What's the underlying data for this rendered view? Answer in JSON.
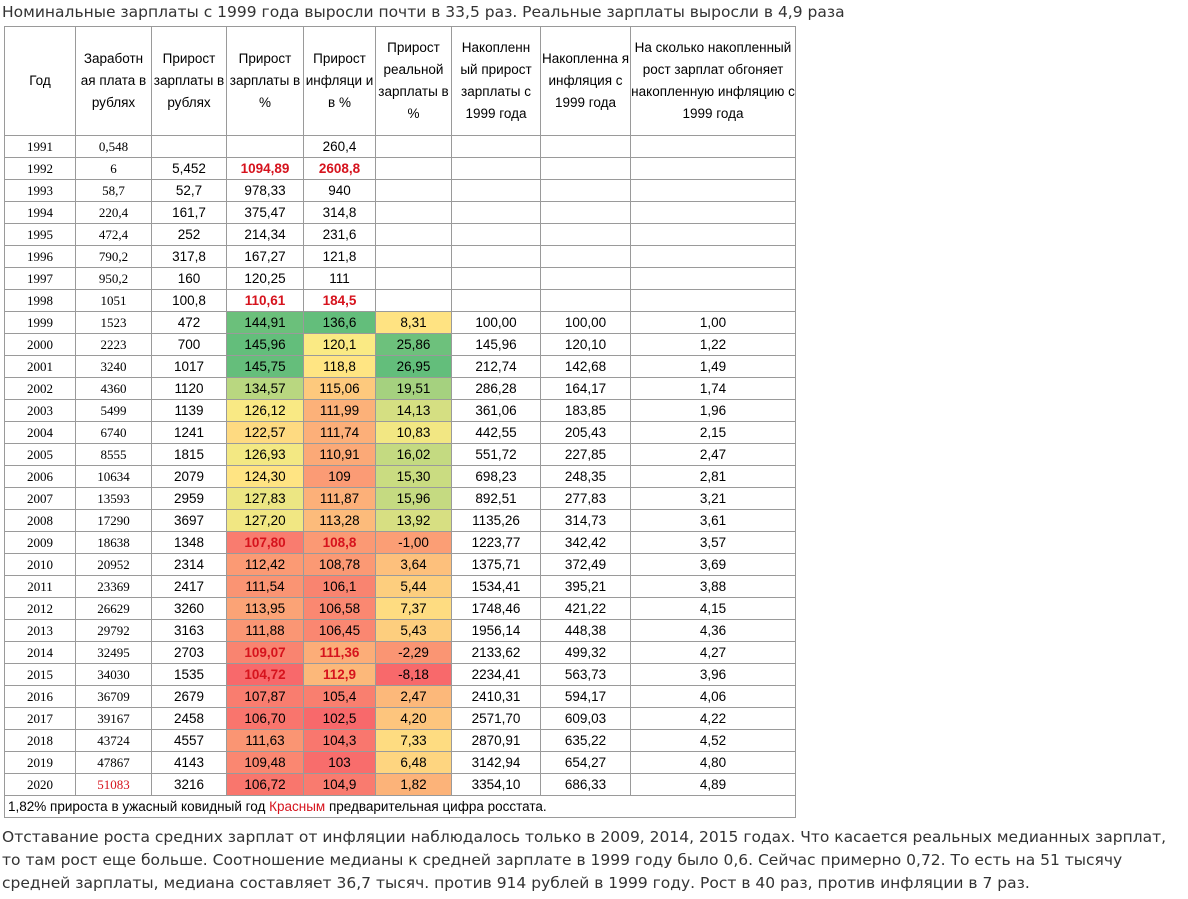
{
  "title": "Номинальные зарплаты с 1999 года выросли почти в 33,5 раз. Реальные зарплаты выросли в 4,9 раза",
  "headers": [
    "Год",
    "Заработн ая плата в рублях",
    "Прирост зарплаты в рублях",
    "Прирост зарплаты в %",
    "Прирост инфляци и в %",
    "Прирост реальной зарплаты в %",
    "Накопленн ый прирост зарплаты с 1999 года",
    "Накопленна я инфляция с 1999 года",
    "На сколько накопленный рост зарплат обгоняет накопленную инфляцию с 1999 года"
  ],
  "rows": [
    {
      "year": "1991",
      "salary": "0,548",
      "inc_rub": "",
      "inc_pct": "",
      "infl": "260,4",
      "real": "",
      "cum_sal": "",
      "cum_infl": "",
      "ratio": ""
    },
    {
      "year": "1992",
      "salary": "6",
      "inc_rub": "5,452",
      "inc_pct": "1094,89",
      "infl": "2608,8",
      "real": "",
      "cum_sal": "",
      "cum_infl": "",
      "ratio": ""
    },
    {
      "year": "1993",
      "salary": "58,7",
      "inc_rub": "52,7",
      "inc_pct": "978,33",
      "infl": "940",
      "real": "",
      "cum_sal": "",
      "cum_infl": "",
      "ratio": ""
    },
    {
      "year": "1994",
      "salary": "220,4",
      "inc_rub": "161,7",
      "inc_pct": "375,47",
      "infl": "314,8",
      "real": "",
      "cum_sal": "",
      "cum_infl": "",
      "ratio": ""
    },
    {
      "year": "1995",
      "salary": "472,4",
      "inc_rub": "252",
      "inc_pct": "214,34",
      "infl": "231,6",
      "real": "",
      "cum_sal": "",
      "cum_infl": "",
      "ratio": ""
    },
    {
      "year": "1996",
      "salary": "790,2",
      "inc_rub": "317,8",
      "inc_pct": "167,27",
      "infl": "121,8",
      "real": "",
      "cum_sal": "",
      "cum_infl": "",
      "ratio": ""
    },
    {
      "year": "1997",
      "salary": "950,2",
      "inc_rub": "160",
      "inc_pct": "120,25",
      "infl": "111",
      "real": "",
      "cum_sal": "",
      "cum_infl": "",
      "ratio": ""
    },
    {
      "year": "1998",
      "salary": "1051",
      "inc_rub": "100,8",
      "inc_pct": "110,61",
      "infl": "184,5",
      "real": "",
      "cum_sal": "",
      "cum_infl": "",
      "ratio": ""
    },
    {
      "year": "1999",
      "salary": "1523",
      "inc_rub": "472",
      "inc_pct": "144,91",
      "infl": "136,6",
      "real": "8,31",
      "cum_sal": "100,00",
      "cum_infl": "100,00",
      "ratio": "1,00"
    },
    {
      "year": "2000",
      "salary": "2223",
      "inc_rub": "700",
      "inc_pct": "145,96",
      "infl": "120,1",
      "real": "25,86",
      "cum_sal": "145,96",
      "cum_infl": "120,10",
      "ratio": "1,22"
    },
    {
      "year": "2001",
      "salary": "3240",
      "inc_rub": "1017",
      "inc_pct": "145,75",
      "infl": "118,8",
      "real": "26,95",
      "cum_sal": "212,74",
      "cum_infl": "142,68",
      "ratio": "1,49"
    },
    {
      "year": "2002",
      "salary": "4360",
      "inc_rub": "1120",
      "inc_pct": "134,57",
      "infl": "115,06",
      "real": "19,51",
      "cum_sal": "286,28",
      "cum_infl": "164,17",
      "ratio": "1,74"
    },
    {
      "year": "2003",
      "salary": "5499",
      "inc_rub": "1139",
      "inc_pct": "126,12",
      "infl": "111,99",
      "real": "14,13",
      "cum_sal": "361,06",
      "cum_infl": "183,85",
      "ratio": "1,96"
    },
    {
      "year": "2004",
      "salary": "6740",
      "inc_rub": "1241",
      "inc_pct": "122,57",
      "infl": "111,74",
      "real": "10,83",
      "cum_sal": "442,55",
      "cum_infl": "205,43",
      "ratio": "2,15"
    },
    {
      "year": "2005",
      "salary": "8555",
      "inc_rub": "1815",
      "inc_pct": "126,93",
      "infl": "110,91",
      "real": "16,02",
      "cum_sal": "551,72",
      "cum_infl": "227,85",
      "ratio": "2,47"
    },
    {
      "year": "2006",
      "salary": "10634",
      "inc_rub": "2079",
      "inc_pct": "124,30",
      "infl": "109",
      "real": "15,30",
      "cum_sal": "698,23",
      "cum_infl": "248,35",
      "ratio": "2,81"
    },
    {
      "year": "2007",
      "salary": "13593",
      "inc_rub": "2959",
      "inc_pct": "127,83",
      "infl": "111,87",
      "real": "15,96",
      "cum_sal": "892,51",
      "cum_infl": "277,83",
      "ratio": "3,21"
    },
    {
      "year": "2008",
      "salary": "17290",
      "inc_rub": "3697",
      "inc_pct": "127,20",
      "infl": "113,28",
      "real": "13,92",
      "cum_sal": "1135,26",
      "cum_infl": "314,73",
      "ratio": "3,61"
    },
    {
      "year": "2009",
      "salary": "18638",
      "inc_rub": "1348",
      "inc_pct": "107,80",
      "infl": "108,8",
      "real": "-1,00",
      "cum_sal": "1223,77",
      "cum_infl": "342,42",
      "ratio": "3,57"
    },
    {
      "year": "2010",
      "salary": "20952",
      "inc_rub": "2314",
      "inc_pct": "112,42",
      "infl": "108,78",
      "real": "3,64",
      "cum_sal": "1375,71",
      "cum_infl": "372,49",
      "ratio": "3,69"
    },
    {
      "year": "2011",
      "salary": "23369",
      "inc_rub": "2417",
      "inc_pct": "111,54",
      "infl": "106,1",
      "real": "5,44",
      "cum_sal": "1534,41",
      "cum_infl": "395,21",
      "ratio": "3,88"
    },
    {
      "year": "2012",
      "salary": "26629",
      "inc_rub": "3260",
      "inc_pct": "113,95",
      "infl": "106,58",
      "real": "7,37",
      "cum_sal": "1748,46",
      "cum_infl": "421,22",
      "ratio": "4,15"
    },
    {
      "year": "2013",
      "salary": "29792",
      "inc_rub": "3163",
      "inc_pct": "111,88",
      "infl": "106,45",
      "real": "5,43",
      "cum_sal": "1956,14",
      "cum_infl": "448,38",
      "ratio": "4,36"
    },
    {
      "year": "2014",
      "salary": "32495",
      "inc_rub": "2703",
      "inc_pct": "109,07",
      "infl": "111,36",
      "real": "-2,29",
      "cum_sal": "2133,62",
      "cum_infl": "499,32",
      "ratio": "4,27"
    },
    {
      "year": "2015",
      "salary": "34030",
      "inc_rub": "1535",
      "inc_pct": "104,72",
      "infl": "112,9",
      "real": "-8,18",
      "cum_sal": "2234,41",
      "cum_infl": "563,73",
      "ratio": "3,96"
    },
    {
      "year": "2016",
      "salary": "36709",
      "inc_rub": "2679",
      "inc_pct": "107,87",
      "infl": "105,4",
      "real": "2,47",
      "cum_sal": "2410,31",
      "cum_infl": "594,17",
      "ratio": "4,06"
    },
    {
      "year": "2017",
      "salary": "39167",
      "inc_rub": "2458",
      "inc_pct": "106,70",
      "infl": "102,5",
      "real": "4,20",
      "cum_sal": "2571,70",
      "cum_infl": "609,03",
      "ratio": "4,22"
    },
    {
      "year": "2018",
      "salary": "43724",
      "inc_rub": "4557",
      "inc_pct": "111,63",
      "infl": "104,3",
      "real": "7,33",
      "cum_sal": "2870,91",
      "cum_infl": "635,22",
      "ratio": "4,52"
    },
    {
      "year": "2019",
      "salary": "47867",
      "inc_rub": "4143",
      "inc_pct": "109,48",
      "infl": "103",
      "real": "6,48",
      "cum_sal": "3142,94",
      "cum_infl": "654,27",
      "ratio": "4,80"
    },
    {
      "year": "2020",
      "salary": "51083",
      "inc_rub": "3216",
      "inc_pct": "106,72",
      "infl": "104,9",
      "real": "1,82",
      "cum_sal": "3354,10",
      "cum_infl": "686,33",
      "ratio": "4,89"
    }
  ],
  "red_bold_years": [
    "1992",
    "1998",
    "2009",
    "2014",
    "2015"
  ],
  "red_salary_years": [
    "2020"
  ],
  "footer": {
    "part1": "1,82% прироста в ужасный ковидный год",
    "red_word": "Красным",
    "part2": " предварительная цифра росстата."
  },
  "paragraph": "Отставание роста средних зарплат от инфляции наблюдалось только в  2009, 2014, 2015 годах. Что касается реальных медианных зарплат, то там рост еще больше. Соотношение медианы к средней зарплате в 1999 году было 0,6. Сейчас примерно 0,72. То есть на 51 тысячу средней зарплаты, медиана составляет 36,7 тысяч. против 914 рублей в 1999 году. Рост в 40 раз, против инфляции в 7 раз.",
  "colors": {
    "text": "#333333",
    "red": "#d6131d",
    "scale_green": "#63be7b",
    "scale_yellow": "#ffeb84",
    "scale_red": "#f8696b"
  }
}
